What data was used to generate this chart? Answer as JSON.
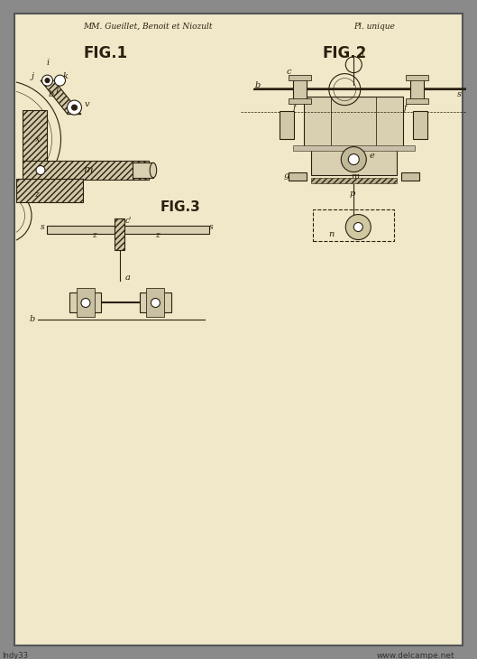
{
  "bg_color": "#e8e0c8",
  "paper_color": "#f0e8c8",
  "outer_bg": "#8a8a8a",
  "line_color": "#2a2010",
  "hatch_color": "#2a2010",
  "header_left": "MM. Gueillet, Benoit et Niozult",
  "header_right": "Pl. unique",
  "fig1_label": "FIG.1",
  "fig2_label": "FIG.2",
  "fig3_label": "FIG.3",
  "watermark_left": "Indy33",
  "watermark_right": "www.delcampe.net",
  "title_fontsize": 9,
  "label_fontsize": 11,
  "annot_fontsize": 8
}
